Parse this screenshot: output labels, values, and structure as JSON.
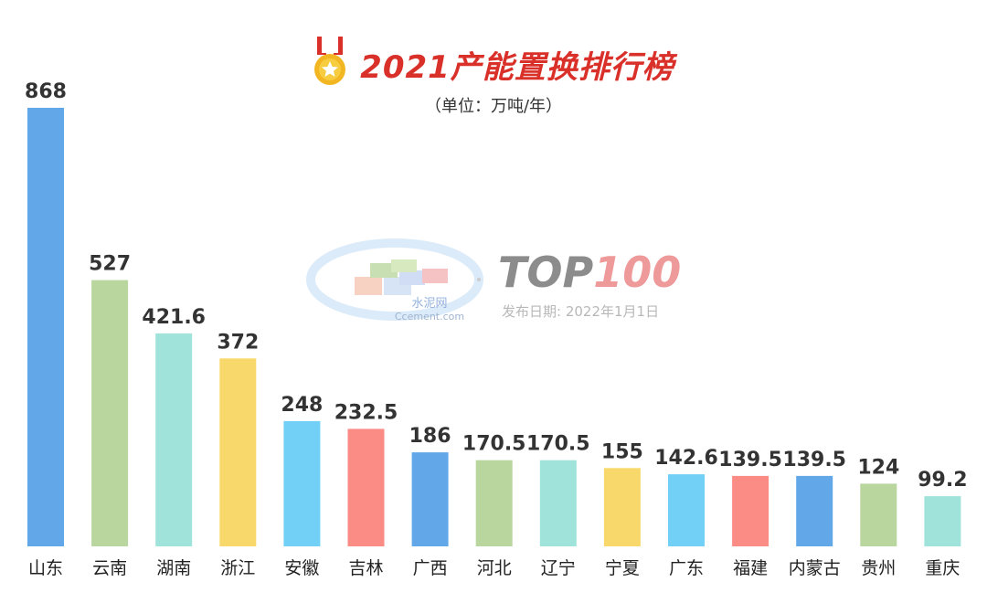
{
  "chart_data": {
    "type": "bar",
    "title": "2021产能置换排行榜",
    "subtitle": "（单位：万吨/年）",
    "categories": [
      "山东",
      "云南",
      "湖南",
      "浙江",
      "安徽",
      "吉林",
      "广西",
      "河北",
      "辽宁",
      "宁夏",
      "广东",
      "福建",
      "内蒙古",
      "贵州",
      "重庆"
    ],
    "values": [
      868,
      527,
      421.6,
      372,
      248,
      232.5,
      186,
      170.5,
      170.5,
      155,
      142.6,
      139.5,
      139.5,
      124,
      99.2
    ],
    "value_labels": [
      "868",
      "527",
      "421.6",
      "372",
      "248",
      "232.5",
      "186",
      "170.5",
      "170.5",
      "155",
      "142.6",
      "139.5",
      "139.5",
      "124",
      "99.2"
    ],
    "colors": [
      "#62a8e8",
      "#b8d69e",
      "#9fe3da",
      "#f8d86a",
      "#72cff5",
      "#fb8b85",
      "#62a8e8",
      "#b8d69e",
      "#9fe3da",
      "#f8d86a",
      "#72cff5",
      "#fb8b85",
      "#62a8e8",
      "#b8d69e",
      "#9fe3da"
    ],
    "ylim": [
      0,
      868
    ],
    "grid": false,
    "legend": "none"
  },
  "watermark": {
    "logo_text_cn": "水泥网",
    "logo_text_en": "Ccement.com",
    "top100_part1": "TOP",
    "top100_part2": "100",
    "top100_color1": "#8c8c8c",
    "top100_color2": "#ee9a9a",
    "publish_date": "发布日期: 2022年1月1日"
  },
  "icons": {
    "medal": "medal-icon"
  },
  "colors": {
    "title": "#d9302a",
    "value_text": "#333333",
    "axis_text": "#222222"
  }
}
